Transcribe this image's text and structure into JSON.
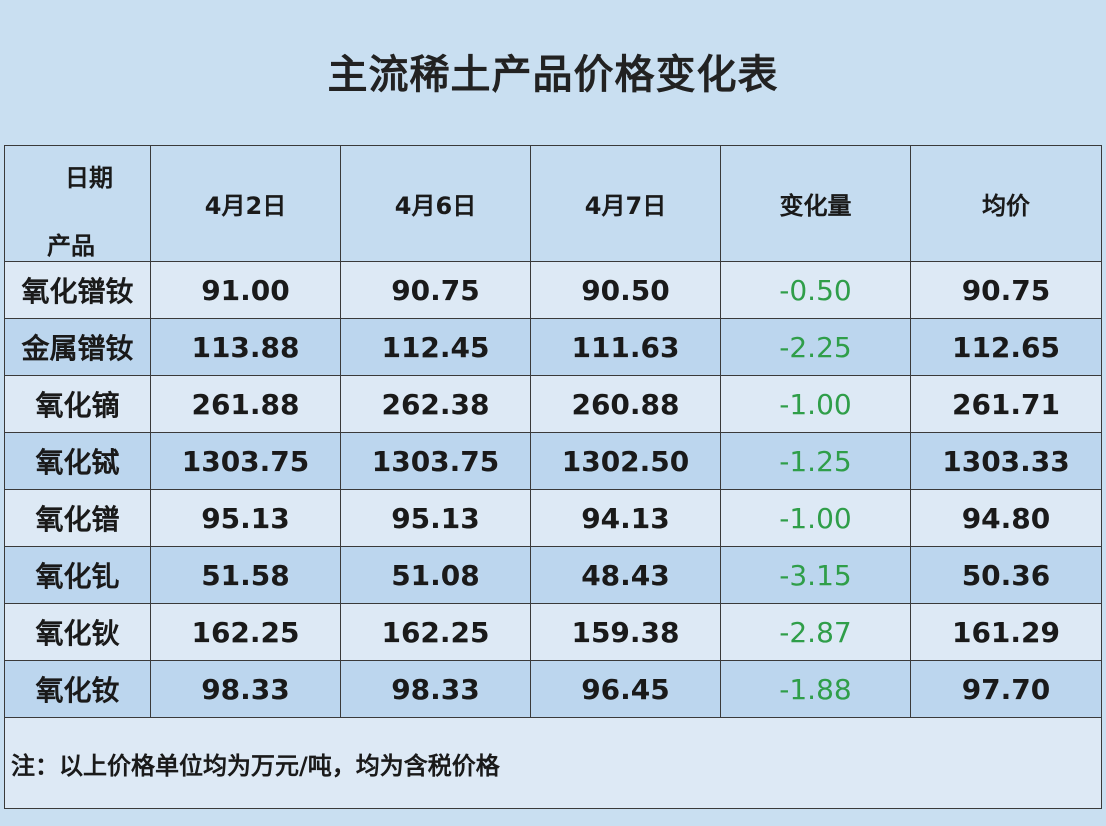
{
  "table": {
    "title": "主流稀土产品价格变化表",
    "corner_top": "日期",
    "corner_bottom": "产品",
    "columns": [
      "4月2日",
      "4月6日",
      "4月7日",
      "变化量",
      "均价"
    ],
    "rows": [
      [
        "氧化镨钕",
        "91.00",
        "90.75",
        "90.50",
        "-0.50",
        "90.75"
      ],
      [
        "金属镨钕",
        "113.88",
        "112.45",
        "111.63",
        "-2.25",
        "112.65"
      ],
      [
        "氧化镝",
        "261.88",
        "262.38",
        "260.88",
        "-1.00",
        "261.71"
      ],
      [
        "氧化铽",
        "1303.75",
        "1303.75",
        "1302.50",
        "-1.25",
        "1303.33"
      ],
      [
        "氧化镨",
        "95.13",
        "95.13",
        "94.13",
        "-1.00",
        "94.80"
      ],
      [
        "氧化钆",
        "51.58",
        "51.08",
        "48.43",
        "-3.15",
        "50.36"
      ],
      [
        "氧化钬",
        "162.25",
        "162.25",
        "159.38",
        "-2.87",
        "161.29"
      ],
      [
        "氧化钕",
        "98.33",
        "98.33",
        "96.45",
        "-1.88",
        "97.70"
      ]
    ],
    "note": "注：以上价格单位均为万元/吨，均为含税价格"
  }
}
